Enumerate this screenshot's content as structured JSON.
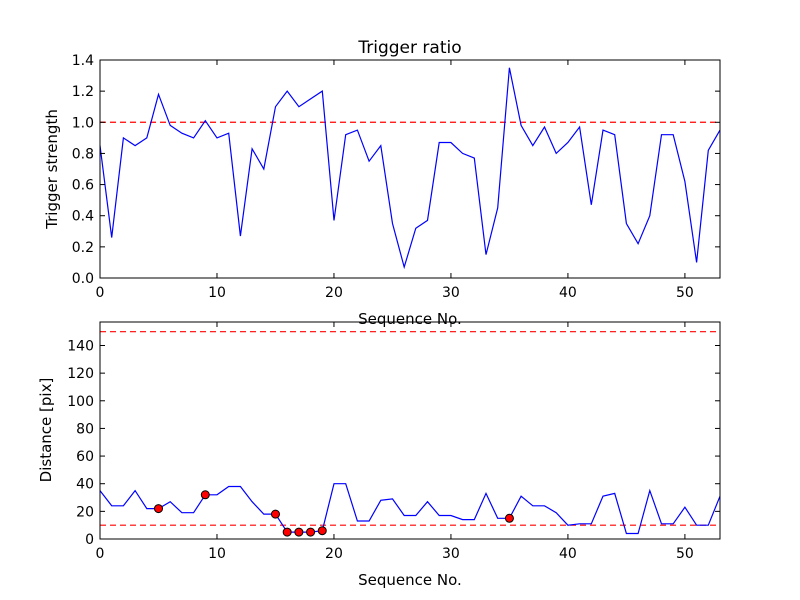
{
  "chart_data": [
    {
      "type": "line",
      "title": "Trigger ratio",
      "xlabel": "Sequence No.",
      "ylabel": "Trigger strength",
      "xlim": [
        0,
        53
      ],
      "ylim": [
        0,
        1.4
      ],
      "xticks": [
        0,
        10,
        20,
        30,
        40,
        50
      ],
      "yticks": [
        0.0,
        0.2,
        0.4,
        0.6,
        0.8,
        1.0,
        1.2,
        1.4
      ],
      "ytick_labels": [
        "0.0",
        "0.2",
        "0.4",
        "0.6",
        "0.8",
        "1.0",
        "1.2",
        "1.4"
      ],
      "series": [
        {
          "color": "#0000ff",
          "x": [
            0,
            1,
            2,
            3,
            4,
            5,
            6,
            7,
            8,
            9,
            10,
            11,
            12,
            13,
            14,
            15,
            16,
            17,
            18,
            19,
            20,
            21,
            22,
            23,
            24,
            25,
            26,
            27,
            28,
            29,
            30,
            31,
            32,
            33,
            34,
            35,
            36,
            37,
            38,
            39,
            40,
            41,
            42,
            43,
            44,
            45,
            46,
            47,
            48,
            49,
            50,
            51,
            52,
            53
          ],
          "y": [
            0.85,
            0.26,
            0.9,
            0.85,
            0.9,
            1.18,
            0.98,
            0.93,
            0.9,
            1.01,
            0.9,
            0.93,
            0.27,
            0.83,
            0.7,
            1.1,
            1.2,
            1.1,
            1.15,
            1.2,
            0.37,
            0.92,
            0.95,
            0.75,
            0.85,
            0.35,
            0.07,
            0.32,
            0.37,
            0.87,
            0.87,
            0.8,
            0.77,
            0.15,
            0.45,
            1.35,
            0.98,
            0.85,
            0.97,
            0.8,
            0.87,
            0.97,
            0.47,
            0.95,
            0.92,
            0.35,
            0.22,
            0.4,
            0.92,
            0.92,
            0.62,
            0.1,
            0.82,
            0.95
          ]
        }
      ],
      "hlines": [
        {
          "y": 1.0,
          "color": "#ff0000",
          "style": "dashed"
        }
      ]
    },
    {
      "type": "line",
      "title": "",
      "xlabel": "Sequence No.",
      "ylabel": "Distance [pix]",
      "xlim": [
        0,
        53
      ],
      "ylim": [
        0,
        157
      ],
      "xticks": [
        0,
        10,
        20,
        30,
        40,
        50
      ],
      "yticks": [
        0,
        20,
        40,
        60,
        80,
        100,
        120,
        140
      ],
      "ytick_labels": [
        "0",
        "20",
        "40",
        "60",
        "80",
        "100",
        "120",
        "140"
      ],
      "series": [
        {
          "color": "#0000ff",
          "x": [
            0,
            1,
            2,
            3,
            4,
            5,
            6,
            7,
            8,
            9,
            10,
            11,
            12,
            13,
            14,
            15,
            16,
            17,
            18,
            19,
            20,
            21,
            22,
            23,
            24,
            25,
            26,
            27,
            28,
            29,
            30,
            31,
            32,
            33,
            34,
            35,
            36,
            37,
            38,
            39,
            40,
            41,
            42,
            43,
            44,
            45,
            46,
            47,
            48,
            49,
            50,
            51,
            52,
            53
          ],
          "y": [
            35,
            24,
            24,
            35,
            22,
            22,
            27,
            19,
            19,
            32,
            32,
            38,
            38,
            27,
            18,
            18,
            5,
            5,
            5,
            6,
            40,
            40,
            13,
            13,
            28,
            29,
            17,
            17,
            27,
            17,
            17,
            14,
            14,
            33,
            15,
            15,
            31,
            24,
            24,
            19,
            10,
            11,
            11,
            31,
            33,
            4,
            4,
            35,
            11,
            11,
            23,
            10,
            10,
            31
          ]
        }
      ],
      "markers": {
        "color": "#ff0000",
        "x": [
          5,
          9,
          15,
          16,
          17,
          18,
          19,
          35
        ],
        "y": [
          22,
          32,
          18,
          5,
          5,
          5,
          6,
          15
        ]
      },
      "hlines": [
        {
          "y": 150,
          "color": "#ff0000",
          "style": "dashed"
        },
        {
          "y": 10,
          "color": "#ff0000",
          "style": "dashed"
        }
      ]
    }
  ]
}
